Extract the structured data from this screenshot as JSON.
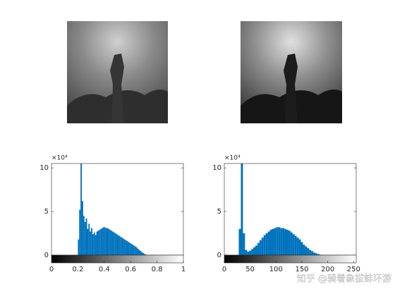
{
  "chart_data": [
    {
      "type": "histogram",
      "color": "#0072bd",
      "bins": [
        0.2,
        0.21,
        0.22,
        0.23,
        0.24,
        0.25,
        0.26,
        0.27,
        0.28,
        0.29,
        0.3,
        0.31,
        0.32,
        0.33,
        0.34,
        0.35,
        0.36,
        0.37,
        0.38,
        0.39,
        0.4,
        0.41,
        0.42,
        0.43,
        0.44,
        0.45,
        0.46,
        0.47,
        0.48,
        0.49,
        0.5,
        0.51,
        0.52,
        0.53,
        0.54,
        0.55,
        0.56,
        0.57,
        0.58,
        0.59,
        0.6,
        0.61,
        0.62,
        0.63,
        0.64,
        0.65,
        0.66,
        0.67,
        0.68,
        0.69,
        0.7,
        0.71,
        0.72
      ],
      "values": [
        18000,
        52000,
        105000,
        62000,
        45000,
        38000,
        42000,
        30000,
        36000,
        27000,
        31000,
        24000,
        26000,
        23000,
        27000,
        28000,
        29000,
        30000,
        31000,
        32000,
        32000,
        31000,
        31000,
        30000,
        29000,
        28000,
        27000,
        26000,
        25000,
        24000,
        23000,
        22000,
        21000,
        20000,
        19000,
        18000,
        17000,
        16000,
        15000,
        14000,
        13000,
        12000,
        11000,
        10000,
        9000,
        7500,
        6000,
        5000,
        3500,
        2500,
        1500,
        600
      ],
      "xlim": [
        0,
        1
      ],
      "xticks": [
        0,
        0.2,
        0.4,
        0.6,
        0.8,
        1
      ],
      "ylim": [
        0,
        105000
      ],
      "yticks": [
        {
          "value": 0,
          "label": "0"
        },
        {
          "value": 50000,
          "label": "5"
        },
        {
          "value": 100000,
          "label": "10"
        }
      ],
      "y_exponent": "×10⁴",
      "colorbar": true
    },
    {
      "type": "histogram",
      "color": "#0072bd",
      "bins": [
        28,
        32,
        36,
        40,
        44,
        48,
        52,
        56,
        60,
        64,
        68,
        72,
        76,
        80,
        84,
        88,
        92,
        96,
        100,
        104,
        108,
        112,
        116,
        120,
        124,
        128,
        132,
        136,
        140,
        144,
        148,
        152,
        156,
        160,
        164,
        168,
        172,
        176,
        180,
        184,
        188
      ],
      "values": [
        30000,
        105000,
        25000,
        6000,
        4000,
        5000,
        7000,
        9000,
        11000,
        14000,
        17000,
        20000,
        23000,
        25000,
        27000,
        29000,
        30000,
        31000,
        32000,
        32000,
        31000,
        31000,
        30000,
        29000,
        28000,
        26000,
        24000,
        22000,
        20000,
        18000,
        15000,
        12000,
        10000,
        8000,
        6000,
        4500,
        3000,
        2000,
        1200,
        500
      ],
      "xlim": [
        0,
        255
      ],
      "xticks": [
        0,
        50,
        100,
        150,
        200,
        250
      ],
      "ylim": [
        0,
        105000
      ],
      "yticks": [
        {
          "value": 0,
          "label": "0"
        },
        {
          "value": 50000,
          "label": "5"
        },
        {
          "value": 100000,
          "label": "10"
        }
      ],
      "y_exponent": "×10⁴",
      "colorbar": true
    }
  ],
  "watermark": "知乎 @骑着象拔蚌环游"
}
